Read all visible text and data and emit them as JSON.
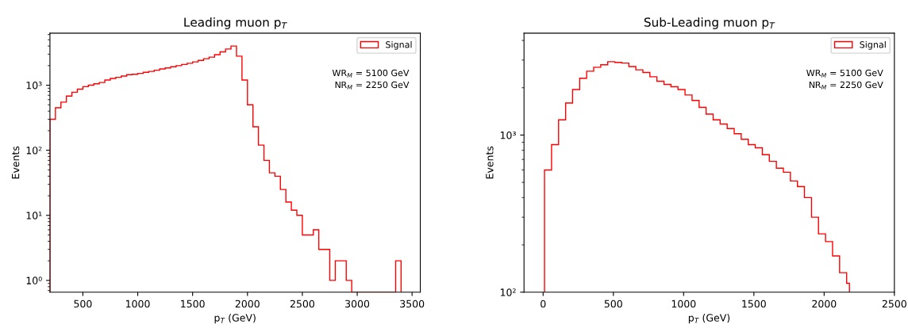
{
  "chart_data": [
    {
      "type": "histogram",
      "title": "Leading muon p$_{T}$",
      "xlabel": "p$_{T}$ (GeV)",
      "ylabel": "Events",
      "log": "y",
      "legend": "top right",
      "grid": false,
      "xlim": [
        200,
        3575
      ],
      "xticks": [
        500,
        1000,
        1500,
        2000,
        2500,
        3000,
        3500
      ],
      "ylim": [
        0.66,
        6300
      ],
      "yticks": [
        {
          "value": 1,
          "label": "10⁰"
        },
        {
          "value": 10,
          "label": "10¹"
        },
        {
          "value": 100,
          "label": "10²"
        },
        {
          "value": 1000,
          "label": "10³"
        }
      ],
      "bins": [
        200,
        250,
        300,
        350,
        400,
        450,
        500,
        550,
        600,
        650,
        700,
        750,
        800,
        850,
        900,
        950,
        1000,
        1050,
        1100,
        1150,
        1200,
        1250,
        1300,
        1350,
        1400,
        1450,
        1500,
        1550,
        1600,
        1650,
        1700,
        1750,
        1800,
        1850,
        1900,
        1950,
        2000,
        2050,
        2100,
        2150,
        2200,
        2250,
        2300,
        2350,
        2400,
        2450,
        2500,
        2550,
        2600,
        2650,
        2700,
        2750,
        2800,
        2850,
        2900,
        2950,
        3000,
        3050,
        3100,
        3150,
        3200,
        3250,
        3300,
        3350,
        3400
      ],
      "series": [
        {
          "name": "Signal",
          "color": "#ff0000",
          "values": [
            300,
            450,
            550,
            680,
            780,
            870,
            950,
            1000,
            1050,
            1100,
            1200,
            1270,
            1320,
            1380,
            1450,
            1470,
            1520,
            1580,
            1630,
            1700,
            1780,
            1840,
            1920,
            2000,
            2080,
            2170,
            2280,
            2400,
            2550,
            2700,
            2950,
            3250,
            3600,
            4000,
            2800,
            1200,
            500,
            230,
            120,
            70,
            45,
            40,
            25,
            16,
            12,
            10,
            5,
            5,
            6,
            3,
            3,
            1,
            2,
            2,
            1,
            null,
            null,
            null,
            null,
            null,
            null,
            null,
            null,
            2
          ]
        }
      ],
      "annotations": [
        "WR$_{M}$ = 5100 GeV\nNR$_{M}$ = 2250 GeV"
      ]
    },
    {
      "type": "histogram",
      "title": "Sub-Leading muon p$_{T}$",
      "xlabel": "p$_{T}$ (GeV)",
      "ylabel": "Events",
      "log": "y",
      "legend": "top right",
      "grid": false,
      "xlim": [
        -136,
        2500
      ],
      "xticks": [
        0,
        500,
        1000,
        1500,
        2000,
        2500
      ],
      "ylim": [
        100,
        4450
      ],
      "yticks": [
        {
          "value": 100,
          "label": "10²"
        },
        {
          "value": 1000,
          "label": "10³"
        }
      ],
      "bins": [
        10,
        60,
        110,
        160,
        210,
        260,
        310,
        360,
        410,
        460,
        510,
        560,
        610,
        660,
        710,
        760,
        810,
        860,
        910,
        960,
        1010,
        1060,
        1110,
        1160,
        1210,
        1260,
        1310,
        1360,
        1410,
        1460,
        1510,
        1560,
        1610,
        1660,
        1710,
        1760,
        1810,
        1860,
        1910,
        1960,
        2010,
        2060,
        2110,
        2160,
        2180
      ],
      "series": [
        {
          "name": "Signal",
          "color": "#ff0000",
          "values": [
            600,
            870,
            1250,
            1600,
            1950,
            2300,
            2550,
            2700,
            2800,
            2930,
            2900,
            2870,
            2730,
            2600,
            2500,
            2350,
            2200,
            2100,
            2030,
            1950,
            1800,
            1660,
            1500,
            1360,
            1250,
            1175,
            1100,
            1020,
            940,
            870,
            830,
            750,
            680,
            615,
            580,
            510,
            470,
            400,
            300,
            235,
            210,
            170,
            133,
            114
          ]
        }
      ],
      "annotations": [
        "WR$_{M}$ = 5100 GeV\nNR$_{M}$ = 2250 GeV"
      ]
    }
  ]
}
